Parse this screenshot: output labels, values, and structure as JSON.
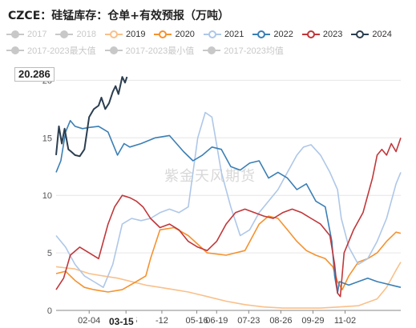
{
  "title": "CZCE：硅锰库存：仓单+有效预报（万吨）",
  "colors": {
    "2017": "#c8c8c8",
    "2018": "#c8c8c8",
    "2019": "#f9c08a",
    "2020": "#f5922f",
    "2021": "#aec7e8",
    "2022": "#3a7fb5",
    "2023": "#c0373a",
    "2024": "#2b3e50",
    "2017-2023最大值": "#c8c8c8",
    "2017-2023最小值": "#c8c8c8",
    "2017-2023均值": "#c8c8c8"
  },
  "legend": [
    {
      "label": "2017",
      "active": false,
      "icon": "line-circle-icon"
    },
    {
      "label": "2018",
      "active": false,
      "icon": "line-circle-icon"
    },
    {
      "label": "2019",
      "active": true,
      "icon": "line-circle-icon"
    },
    {
      "label": "2020",
      "active": true,
      "icon": "line-circle-icon"
    },
    {
      "label": "2021",
      "active": true,
      "icon": "line-circle-icon"
    },
    {
      "label": "2022",
      "active": true,
      "icon": "line-circle-icon"
    },
    {
      "label": "2023",
      "active": true,
      "icon": "line-circle-icon"
    },
    {
      "label": "2024",
      "active": true,
      "icon": "line-circle-icon"
    },
    {
      "label": "2017-2023最大值",
      "active": false,
      "icon": "line-circle-icon"
    },
    {
      "label": "2017-2023最小值",
      "active": false,
      "icon": "line-circle-icon"
    },
    {
      "label": "2017-2023均值",
      "active": false,
      "icon": "line-circle-icon"
    }
  ],
  "watermark": "紫金天风期货",
  "tooltip": {
    "value": "20.286",
    "date": "03-15"
  },
  "chart_data": {
    "type": "line",
    "title": "CZCE：硅锰库存：仓单+有效预报（万吨）",
    "xlabel": "",
    "ylabel": "",
    "x_unit": "day of year",
    "xlim": [
      0,
      365
    ],
    "ylim": [
      0,
      21
    ],
    "y_ticks": [
      0,
      5,
      10,
      15,
      20
    ],
    "y_tick_labels": [
      "0",
      "5",
      "10",
      "15",
      "20"
    ],
    "x_ticks": [
      {
        "day": 35,
        "label": "02-04"
      },
      {
        "day": 74,
        "label": "03-15"
      },
      {
        "day": 112,
        "label": "-12"
      },
      {
        "day": 149,
        "label": "05-16"
      },
      {
        "day": 170,
        "label": "06-19"
      },
      {
        "day": 204,
        "label": "07-23"
      },
      {
        "day": 238,
        "label": "08-26"
      },
      {
        "day": 272,
        "label": "09-29"
      },
      {
        "day": 306,
        "label": "11-02"
      }
    ],
    "grid": "horizontal",
    "legend_position": "top",
    "series": [
      {
        "name": "2019",
        "x": [
          0,
          20,
          35,
          50,
          65,
          80,
          95,
          110,
          125,
          140,
          160,
          180,
          200,
          220,
          240,
          260,
          280,
          300,
          320,
          340,
          350,
          360,
          365
        ],
        "y": [
          3.8,
          3.6,
          3.2,
          3.0,
          2.8,
          2.5,
          2.2,
          2.0,
          1.8,
          1.6,
          1.2,
          0.8,
          0.5,
          0.3,
          0.2,
          0.2,
          0.2,
          0.3,
          0.4,
          1.0,
          2.0,
          3.5,
          4.2
        ]
      },
      {
        "name": "2020",
        "x": [
          0,
          10,
          20,
          30,
          40,
          55,
          70,
          85,
          95,
          100,
          110,
          125,
          140,
          160,
          180,
          200,
          215,
          225,
          235,
          245,
          255,
          265,
          275,
          285,
          293,
          298,
          303,
          310,
          320,
          330,
          340,
          350,
          360,
          365
        ],
        "y": [
          3.2,
          3.4,
          2.6,
          2.0,
          1.8,
          1.6,
          1.8,
          2.5,
          3.0,
          4.5,
          7.0,
          7.2,
          6.5,
          5.0,
          4.8,
          5.2,
          7.5,
          8.2,
          8.0,
          7.0,
          6.0,
          5.2,
          4.8,
          4.5,
          3.8,
          2.5,
          1.8,
          3.0,
          4.2,
          4.5,
          5.0,
          6.0,
          6.8,
          6.7
        ]
      },
      {
        "name": "2021",
        "x": [
          0,
          10,
          20,
          30,
          40,
          50,
          60,
          70,
          80,
          90,
          100,
          110,
          120,
          130,
          140,
          150,
          158,
          165,
          175,
          185,
          195,
          205,
          215,
          225,
          235,
          245,
          255,
          262,
          270,
          280,
          290,
          298,
          302,
          310,
          320,
          330,
          340,
          350,
          360,
          365
        ],
        "y": [
          6.5,
          5.5,
          4.0,
          3.0,
          2.5,
          2.0,
          4.0,
          7.5,
          8.0,
          7.8,
          8.0,
          8.5,
          8.8,
          8.5,
          9.0,
          15.0,
          17.2,
          16.8,
          12.0,
          9.0,
          6.5,
          7.0,
          8.5,
          9.5,
          10.5,
          12.0,
          13.5,
          14.2,
          14.4,
          13.5,
          12.0,
          10.5,
          8.0,
          5.5,
          4.0,
          4.5,
          6.0,
          8.0,
          11.0,
          12.0
        ]
      },
      {
        "name": "2022",
        "x": [
          0,
          5,
          10,
          15,
          20,
          28,
          35,
          45,
          55,
          65,
          72,
          78,
          90,
          105,
          120,
          135,
          145,
          155,
          165,
          175,
          185,
          195,
          205,
          215,
          225,
          235,
          245,
          255,
          265,
          275,
          285,
          292,
          295,
          298,
          300,
          310,
          320,
          330,
          340,
          350,
          360,
          365
        ],
        "y": [
          12.0,
          13.0,
          15.5,
          16.5,
          16.0,
          15.8,
          15.9,
          16.0,
          15.5,
          13.5,
          14.5,
          14.2,
          14.5,
          15.0,
          15.2,
          13.8,
          13.0,
          13.5,
          14.2,
          14.0,
          12.5,
          12.2,
          12.8,
          13.0,
          11.5,
          12.0,
          11.5,
          10.5,
          11.0,
          9.5,
          9.0,
          6.0,
          3.0,
          1.5,
          2.5,
          2.2,
          2.5,
          2.8,
          2.5,
          2.3,
          2.1,
          2.0
        ]
      },
      {
        "name": "2023",
        "x": [
          0,
          8,
          15,
          25,
          35,
          45,
          55,
          62,
          70,
          78,
          85,
          92,
          100,
          110,
          120,
          130,
          140,
          150,
          160,
          170,
          180,
          190,
          200,
          210,
          220,
          230,
          240,
          250,
          260,
          270,
          280,
          290,
          295,
          298,
          301,
          305,
          315,
          325,
          335,
          340,
          345,
          350,
          355,
          360,
          365
        ],
        "y": [
          1.8,
          2.8,
          4.8,
          5.5,
          5.0,
          4.5,
          7.5,
          9.0,
          10.0,
          9.8,
          9.5,
          9.0,
          8.0,
          7.2,
          7.5,
          7.0,
          6.0,
          5.5,
          5.2,
          6.0,
          7.5,
          8.5,
          8.8,
          8.5,
          8.2,
          8.0,
          8.5,
          8.8,
          8.5,
          8.0,
          7.5,
          6.5,
          4.0,
          1.5,
          1.2,
          5.0,
          7.0,
          8.5,
          11.5,
          13.5,
          14.0,
          13.5,
          14.5,
          13.8,
          15.0
        ]
      },
      {
        "name": "2024",
        "x": [
          0,
          3,
          6,
          9,
          13,
          16,
          20,
          25,
          30,
          35,
          40,
          45,
          48,
          52,
          56,
          60,
          63,
          66,
          70,
          73,
          75
        ],
        "y": [
          13.5,
          16.0,
          14.5,
          15.8,
          14.0,
          13.8,
          13.5,
          13.4,
          14.0,
          16.8,
          17.5,
          17.8,
          18.5,
          17.5,
          18.0,
          19.0,
          19.5,
          18.8,
          20.3,
          19.8,
          20.3
        ]
      }
    ]
  }
}
